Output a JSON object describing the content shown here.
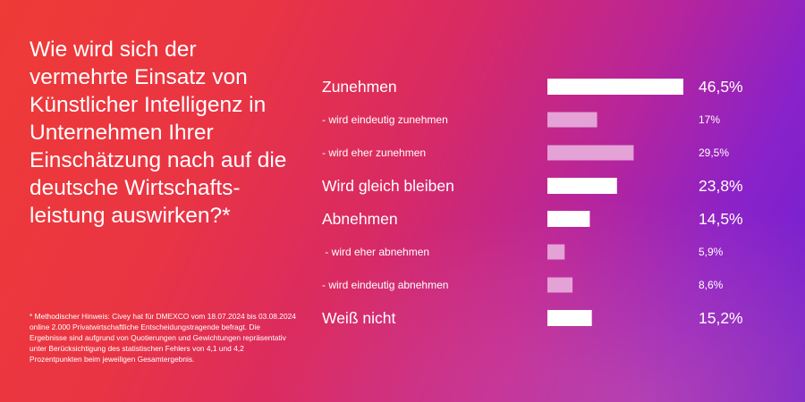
{
  "question": "Wie wird sich der vermehrte Einsatz von Künstlicher Intelligenz in Unternehmen Ihrer Einschätzung nach auf die deutsche Wirtschafts­leistung auswirken?*",
  "footnote": "* Methodischer Hinweis: Civey hat für DMEXCO vom 18.07.2024 bis 03.08.2024 online 2.000 Privatwirtschaftliche Entscheidungstragende befragt. Die Ergebnisse sind aufgrund von Quotierungen und Gewichtungen repräsentativ unter Berücksichtigung des statistischen Fehlers von 4,1 und 4,2 Prozentpunkten beim jeweiligen Gesamtergebnis.",
  "colors": {
    "main_bar": "#ffffff",
    "sub_bar": "#e4a2d6"
  },
  "chart_data": {
    "type": "bar",
    "orientation": "horizontal",
    "categories": [
      "Zunehmen",
      "- wird eindeutig zunehmen",
      "- wird eher zunehmen",
      "Wird gleich bleiben",
      "Abnehmen",
      " - wird eher abnehmen",
      "- wird eindeutig abnehmen",
      "Weiß nicht"
    ],
    "values": [
      46.5,
      17,
      29.5,
      23.8,
      14.5,
      5.9,
      8.6,
      15.2
    ],
    "value_labels": [
      "46,5%",
      "17%",
      "29,5%",
      "23,8%",
      "14,5%",
      "5,9%",
      "8,6%",
      "15,2%"
    ],
    "levels": [
      "main",
      "sub",
      "sub",
      "main",
      "main",
      "sub",
      "sub",
      "main"
    ],
    "xlim": [
      0,
      46.5
    ],
    "grid": false
  }
}
